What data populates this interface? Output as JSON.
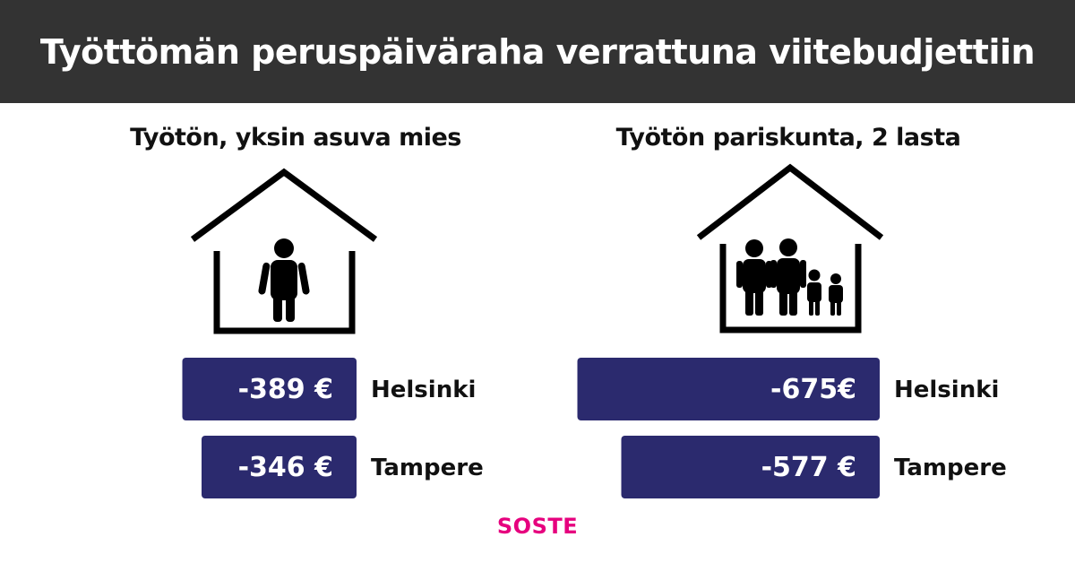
{
  "header": {
    "title": "Työttömän peruspäiväraha verrattuna viitebudjettiin"
  },
  "logo": {
    "text": "SOSTE",
    "color": "#e6007e"
  },
  "colors": {
    "bar": "#2b2a6e",
    "header_bg": "#333333",
    "text": "#111111"
  },
  "chart_data": [
    {
      "type": "bar",
      "orientation": "horizontal",
      "title": "Työtön, yksin asuva mies",
      "icon": "house-single-person-icon",
      "categories": [
        "Helsinki",
        "Tampere"
      ],
      "values": [
        -389,
        -346
      ],
      "labels": [
        "-389 €",
        "-346 €"
      ],
      "unit": "€"
    },
    {
      "type": "bar",
      "orientation": "horizontal",
      "title": "Työtön pariskunta, 2 lasta",
      "icon": "house-family-icon",
      "categories": [
        "Helsinki",
        "Tampere"
      ],
      "values": [
        -675,
        -577
      ],
      "labels": [
        "-675€",
        "-577 €"
      ],
      "unit": "€"
    }
  ]
}
